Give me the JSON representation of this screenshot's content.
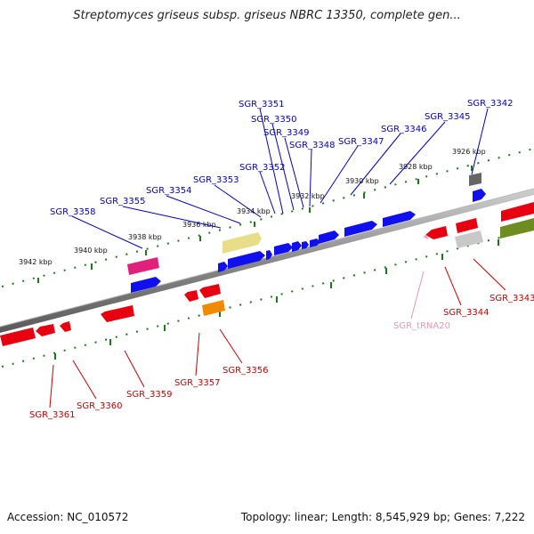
{
  "title": "Streptomyces griseus subsp. griseus NBRC 13350, complete gen...",
  "accession": "Accession: NC_010572",
  "summary": "Topology: linear; Length: 8,545,929 bp; Genes: 7,222",
  "colors": {
    "forward_label": "#0000cc",
    "reverse_label": "#cc0000",
    "trna_label": "#e896b4",
    "ruler_tick": "#1a7a1a",
    "axis": "#808080"
  },
  "ruler_labels": [
    "3926 kbp",
    "3928 kbp",
    "3930 kbp",
    "3932 kbp",
    "3934 kbp",
    "3936 kbp",
    "3938 kbp",
    "3940 kbp",
    "3942 kbp"
  ],
  "forward_genes": [
    "SGR_3342",
    "SGR_3345",
    "SGR_3346",
    "SGR_3347",
    "SGR_3348",
    "SGR_3349",
    "SGR_3350",
    "SGR_3351",
    "SGR_3352",
    "SGR_3353",
    "SGR_3354",
    "SGR_3355",
    "SGR_3358"
  ],
  "reverse_genes": [
    "SGR_3343",
    "SGR_3344",
    "SGR_tRNA20",
    "SGR_3356",
    "SGR_3357",
    "SGR_3359",
    "SGR_3360",
    "SGR_3361"
  ]
}
